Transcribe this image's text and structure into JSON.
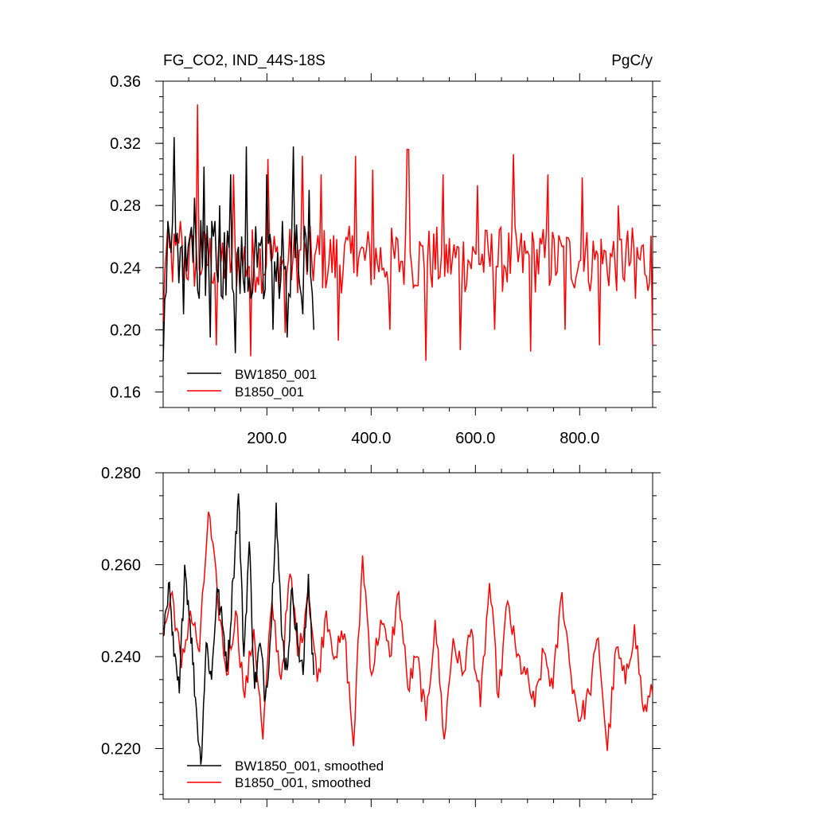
{
  "chart_data": [
    {
      "type": "line",
      "title_left": "FG_CO2, IND_44S-18S",
      "title_right": "PgC/y",
      "xlim": [
        1,
        940
      ],
      "ylim": [
        0.15,
        0.36
      ],
      "x_ticks": [
        200,
        400,
        600,
        800
      ],
      "x_tick_labels": [
        "200.0",
        "400.0",
        "600.0",
        "800.0"
      ],
      "y_ticks": [
        0.16,
        0.2,
        0.24,
        0.28,
        0.32,
        0.36
      ],
      "y_tick_labels": [
        "0.16",
        "0.20",
        "0.24",
        "0.28",
        "0.32",
        "0.36"
      ],
      "legend_position": "bottom-left",
      "series": [
        {
          "name": "BW1850_001",
          "color": "#000000",
          "x_start": 1,
          "x_end": 290,
          "mean": 0.245,
          "amplitude": 0.026,
          "values": [
            0.18,
            0.27,
            0.324,
            0.23,
            0.21,
            0.26,
            0.285,
            0.22,
            0.305,
            0.195,
            0.27,
            0.28,
            0.222,
            0.3,
            0.185,
            0.26,
            0.318,
            0.22,
            0.24,
            0.26,
            0.3,
            0.2,
            0.25,
            0.27,
            0.195,
            0.318,
            0.24,
            0.21,
            0.29,
            0.2
          ]
        },
        {
          "name": "B1850_001",
          "color": "#ff0000",
          "x_start": 1,
          "x_end": 940,
          "mean": 0.245,
          "amplitude": 0.022,
          "values": [
            0.205,
            0.27,
            0.345,
            0.19,
            0.3,
            0.183,
            0.31,
            0.198,
            0.312,
            0.3,
            0.193,
            0.312,
            0.303,
            0.2,
            0.316,
            0.18,
            0.3,
            0.187,
            0.293,
            0.2,
            0.313,
            0.186,
            0.3,
            0.2,
            0.298,
            0.19,
            0.28,
            0.22,
            0.19
          ]
        }
      ]
    },
    {
      "type": "line",
      "xlim": [
        1,
        940
      ],
      "ylim": [
        0.209,
        0.28
      ],
      "y_ticks": [
        0.22,
        0.24,
        0.26,
        0.28
      ],
      "y_tick_labels": [
        "0.220",
        "0.240",
        "0.260",
        "0.280"
      ],
      "legend_position": "bottom-left",
      "series": [
        {
          "name": "BW1850_001, smoothed",
          "color": "#000000",
          "x_start": 1,
          "x_end": 290,
          "values": [
            0.2445,
            0.256,
            0.24,
            0.232,
            0.26,
            0.248,
            0.231,
            0.2165,
            0.243,
            0.235,
            0.255,
            0.247,
            0.238,
            0.257,
            0.2755,
            0.24,
            0.265,
            0.233,
            0.243,
            0.231,
            0.245,
            0.2735,
            0.245,
            0.237,
            0.255,
            0.243,
            0.236,
            0.258,
            0.236
          ]
        },
        {
          "name": "B1850_001, smoothed",
          "color": "#ff0000",
          "x_start": 1,
          "x_end": 940,
          "values": [
            0.2445,
            0.254,
            0.2375,
            0.25,
            0.241,
            0.2715,
            0.253,
            0.236,
            0.25,
            0.231,
            0.246,
            0.222,
            0.252,
            0.235,
            0.258,
            0.24,
            0.255,
            0.2345,
            0.25,
            0.24,
            0.245,
            0.2205,
            0.262,
            0.236,
            0.248,
            0.24,
            0.254,
            0.233,
            0.24,
            0.226,
            0.248,
            0.222,
            0.244,
            0.236,
            0.246,
            0.229,
            0.256,
            0.231,
            0.252,
            0.24,
            0.236,
            0.229,
            0.241,
            0.233,
            0.254,
            0.236,
            0.226,
            0.232,
            0.244,
            0.2195,
            0.242,
            0.234,
            0.247,
            0.228,
            0.232
          ]
        }
      ]
    }
  ]
}
